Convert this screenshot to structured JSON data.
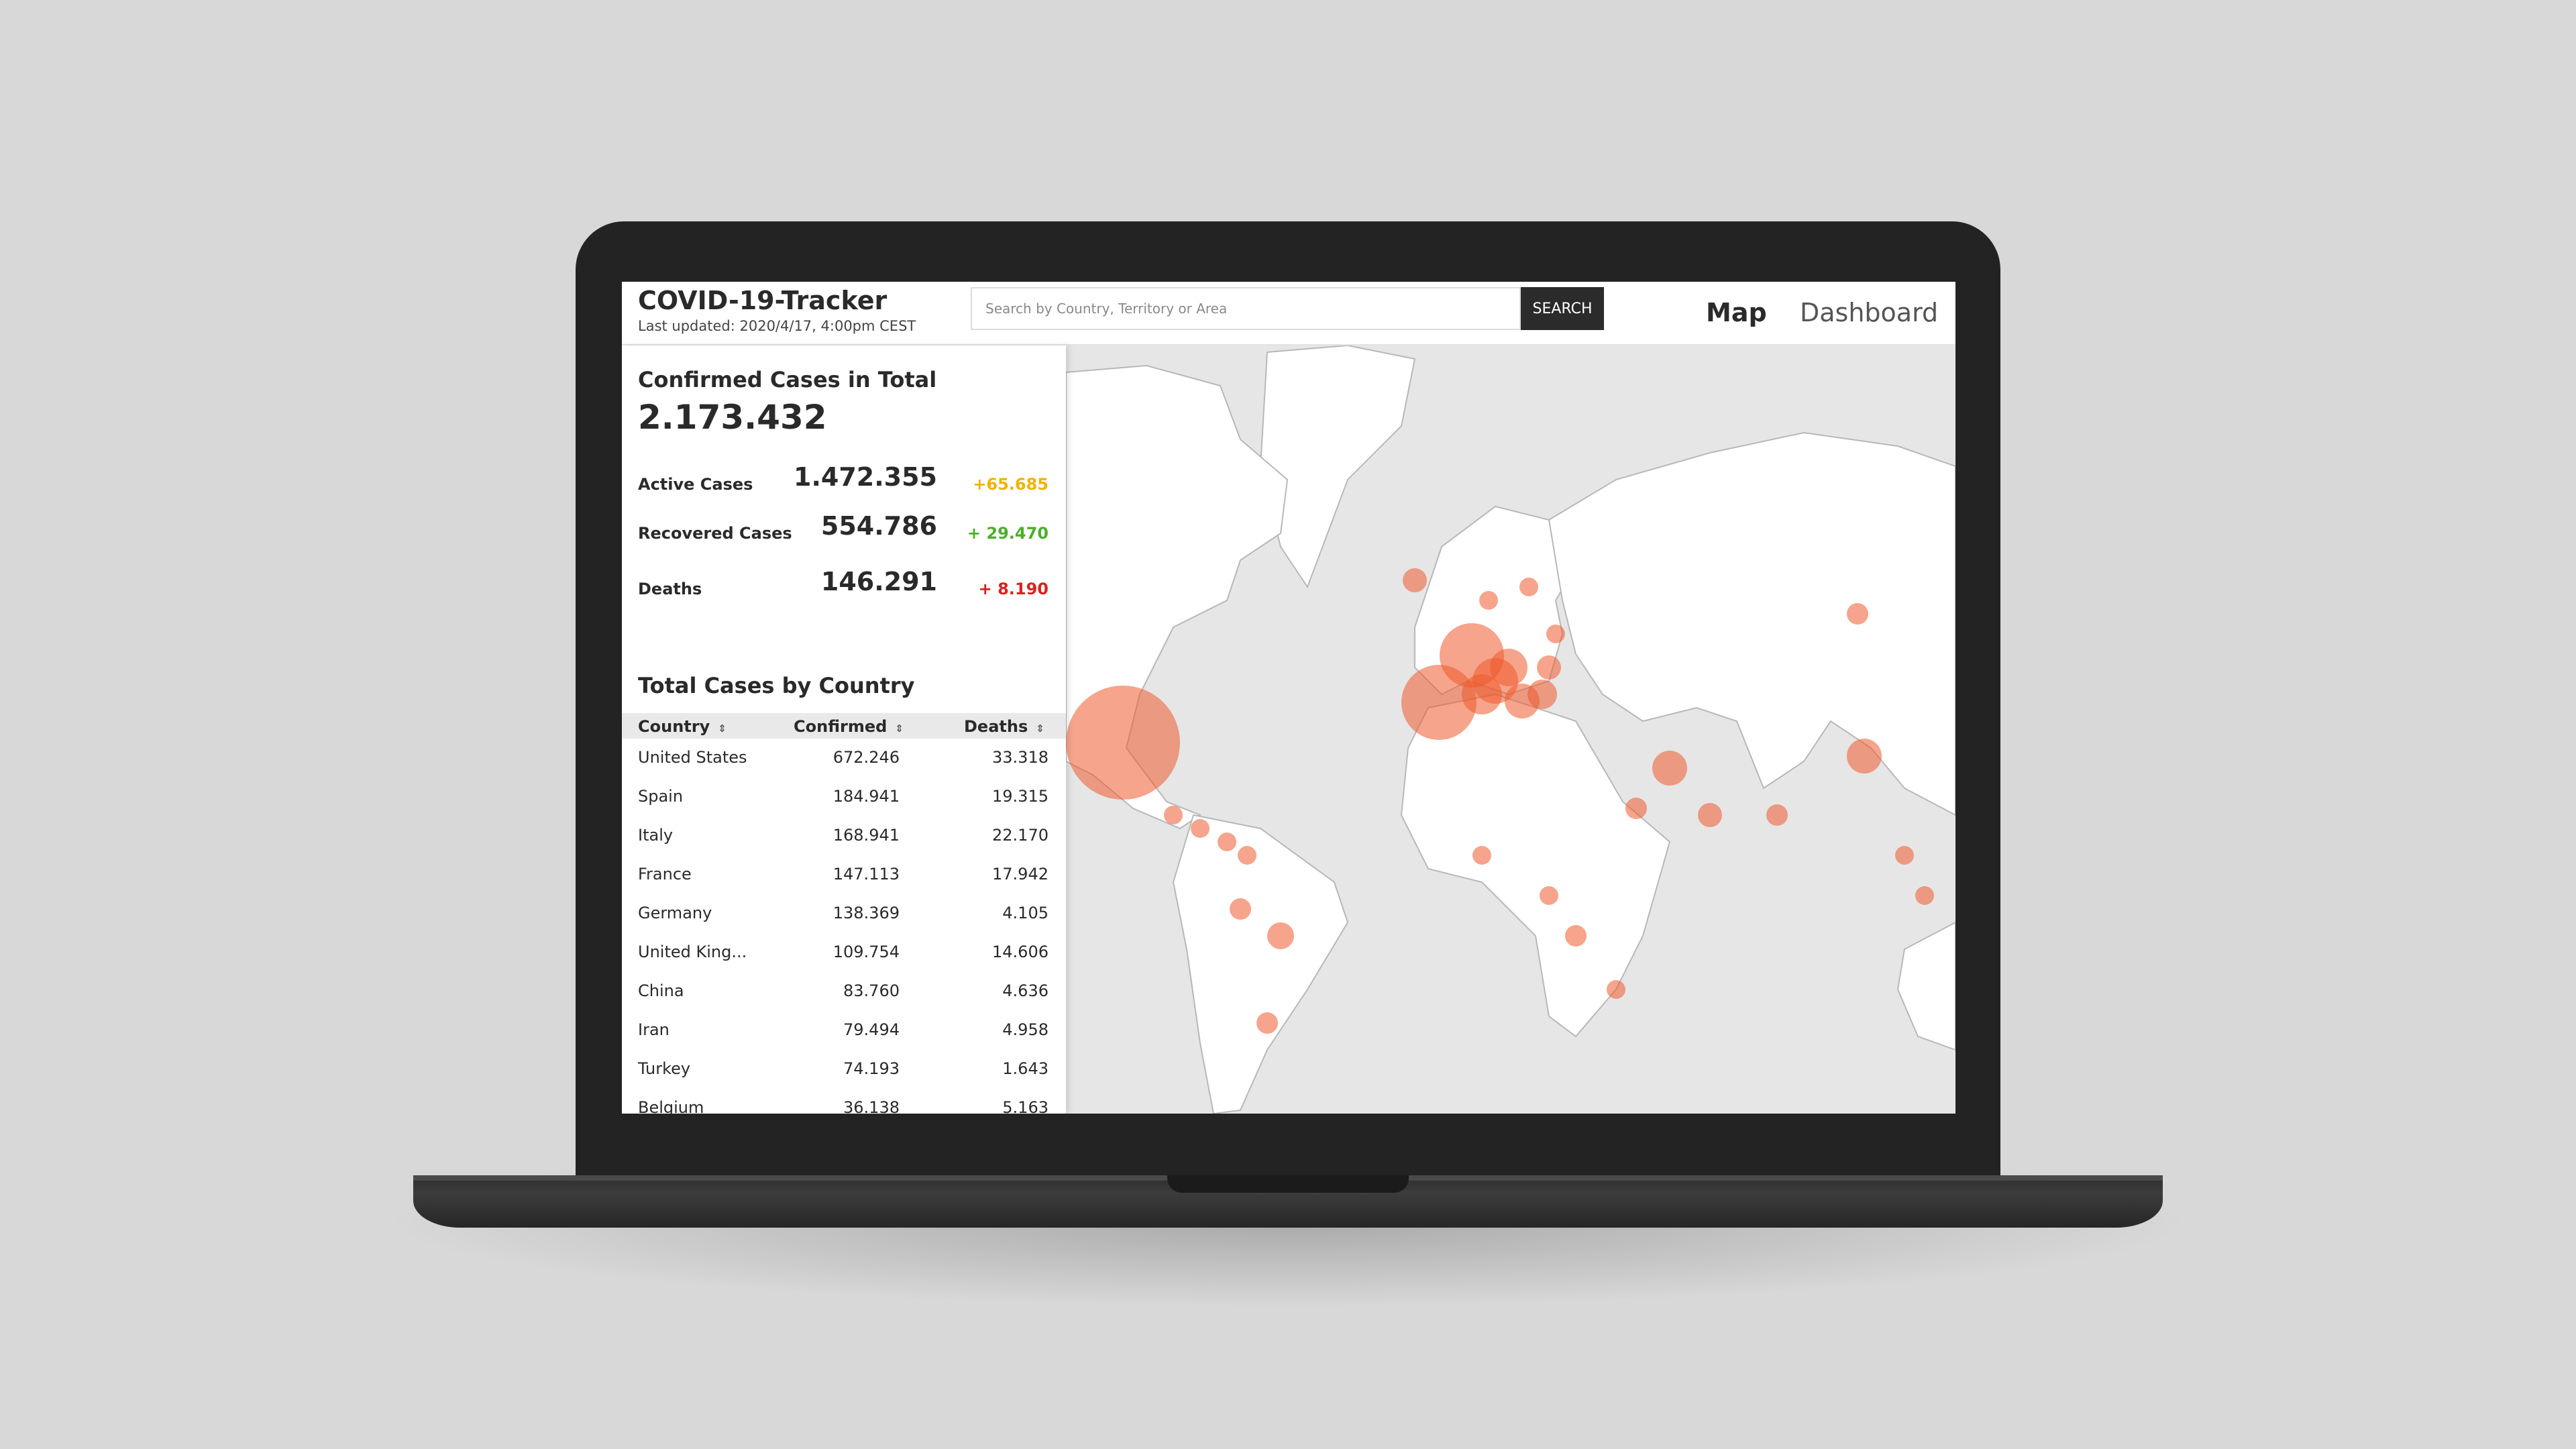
{
  "header": {
    "title": "COVID-19-Tracker",
    "last_updated": "Last updated: 2020/4/17, 4:00pm CEST",
    "search_placeholder": "Search by Country, Territory or Area",
    "search_button": "SEARCH",
    "nav": {
      "map": "Map",
      "dashboard": "Dashboard"
    }
  },
  "summary": {
    "total_label": "Confirmed Cases in Total",
    "total_value": "2.173.432",
    "stats": [
      {
        "label": "Active Cases",
        "value": "1.472.355",
        "delta": "+65.685",
        "color": "#f0b400"
      },
      {
        "label": "Recovered Cases",
        "value": "554.786",
        "delta": "+ 29.470",
        "color": "#4caf2a"
      },
      {
        "label": "Deaths",
        "value": "146.291",
        "delta": "+ 8.190",
        "color": "#d9221f"
      }
    ]
  },
  "table": {
    "title": "Total Cases by Country",
    "columns": [
      "Country",
      "Confirmed",
      "Deaths"
    ],
    "sort_icon": "sort-icon",
    "rows": [
      [
        "United States",
        "672.246",
        "33.318"
      ],
      [
        "Spain",
        "184.941",
        "19.315"
      ],
      [
        "Italy",
        "168.941",
        "22.170"
      ],
      [
        "France",
        "147.113",
        "17.942"
      ],
      [
        "Germany",
        "138.369",
        "4.105"
      ],
      [
        "United King...",
        "109.754",
        "14.606"
      ],
      [
        "China",
        "83.760",
        "4.636"
      ],
      [
        "Iran",
        "79.494",
        "4.958"
      ],
      [
        "Turkey",
        "74.193",
        "1.643"
      ],
      [
        "Belgium",
        "36.138",
        "5.163"
      ]
    ]
  },
  "map": {
    "bubble_color": "#ee5a2b",
    "land_color": "#ffffff",
    "water_color": "#e6e6e6"
  }
}
